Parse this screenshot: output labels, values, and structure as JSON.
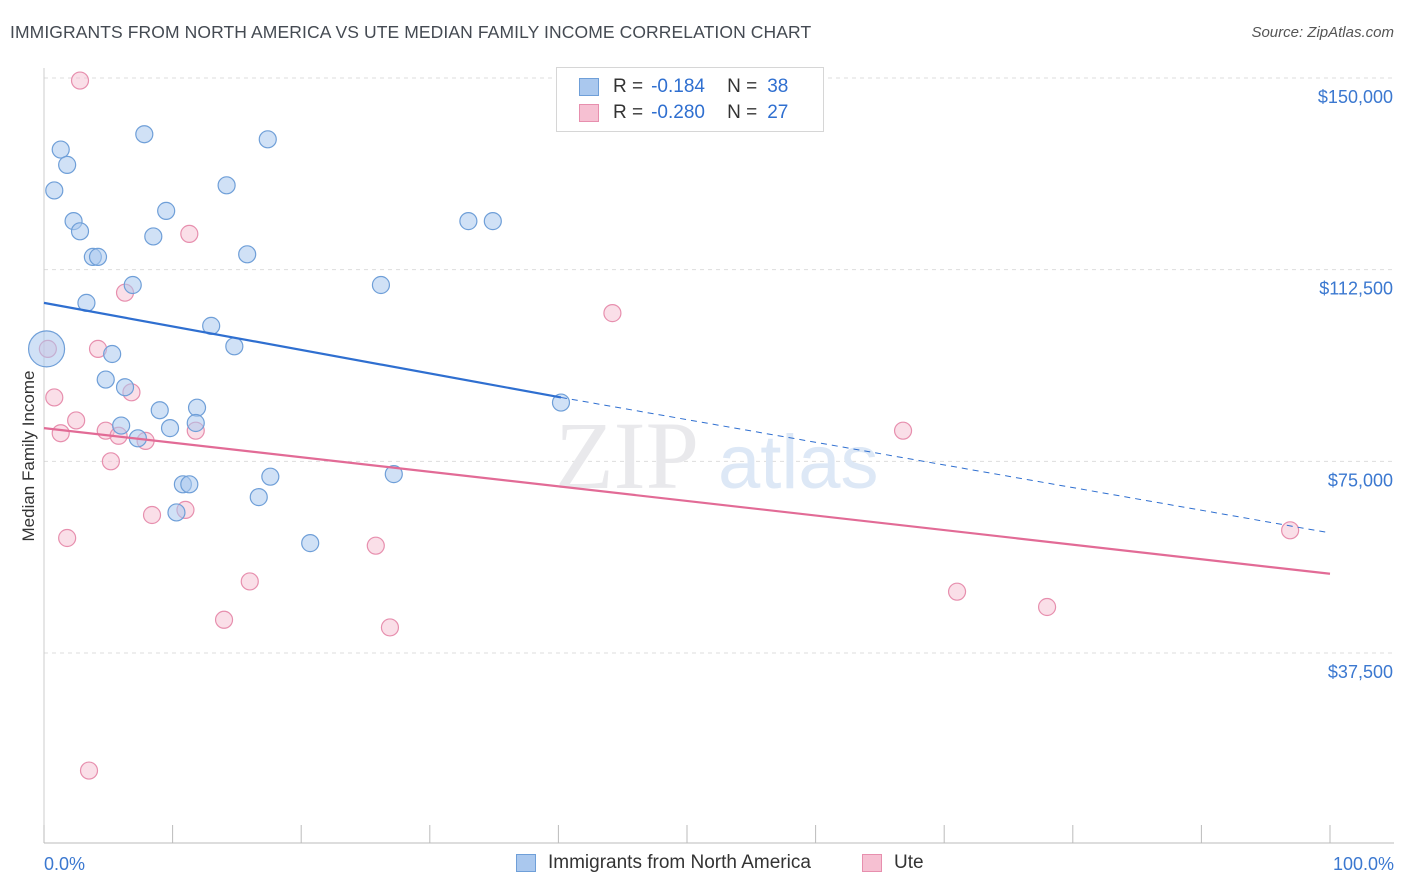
{
  "title": "IMMIGRANTS FROM NORTH AMERICA VS UTE MEDIAN FAMILY INCOME CORRELATION CHART",
  "source": "Source: ZipAtlas.com",
  "watermark": {
    "zip": "ZIP",
    "atlas": "atlas"
  },
  "colors": {
    "blue_fill": "#aac8ee",
    "blue_stroke": "#6f9fd8",
    "blue_line": "#2f6fd0",
    "pink_fill": "#f6c0d2",
    "pink_stroke": "#e78fae",
    "pink_line": "#e26b96",
    "axis_label": "#3b78d0",
    "grid": "#dddddd"
  },
  "legend": {
    "rows": [
      {
        "r_label": "R =",
        "r_value": "-0.184",
        "n_label": "N =",
        "n_value": "38",
        "color": "blue"
      },
      {
        "r_label": "R =",
        "r_value": "-0.280",
        "n_label": "N =",
        "n_value": "27",
        "color": "pink"
      }
    ]
  },
  "bottom_legend": {
    "blue": "Immigrants from North America",
    "pink": "Ute"
  },
  "chart_data": {
    "type": "scatter",
    "title": "IMMIGRANTS FROM NORTH AMERICA VS UTE MEDIAN FAMILY INCOME CORRELATION CHART",
    "xlabel": "",
    "ylabel": "Median Family Income",
    "xlim": [
      0,
      100
    ],
    "ylim": [
      0,
      150000
    ],
    "x_tick_labels": [
      "0.0%",
      "100.0%"
    ],
    "y_ticks": [
      {
        "value": 37500,
        "label": "$37,500"
      },
      {
        "value": 75000,
        "label": "$75,000"
      },
      {
        "value": 112500,
        "label": "$112,500"
      },
      {
        "value": 150000,
        "label": "$150,000"
      }
    ],
    "grid": true,
    "series": [
      {
        "name": "Immigrants from North America",
        "color": "blue",
        "points": [
          [
            0.2,
            97000,
            3
          ],
          [
            1.3,
            136000,
            1
          ],
          [
            1.8,
            133000,
            1
          ],
          [
            0.8,
            128000,
            1
          ],
          [
            2.3,
            122000,
            1
          ],
          [
            2.8,
            120000,
            1
          ],
          [
            3.8,
            115000,
            1
          ],
          [
            4.2,
            115000,
            1
          ],
          [
            3.3,
            106000,
            1
          ],
          [
            7.8,
            139000,
            1
          ],
          [
            17.4,
            138000,
            1
          ],
          [
            14.2,
            129000,
            1
          ],
          [
            9.5,
            124000,
            1
          ],
          [
            8.5,
            119000,
            1
          ],
          [
            15.8,
            115500,
            1
          ],
          [
            6.9,
            109500,
            1
          ],
          [
            26.2,
            109500,
            1
          ],
          [
            33.0,
            122000,
            1
          ],
          [
            34.9,
            122000,
            1
          ],
          [
            13.0,
            101500,
            1
          ],
          [
            14.8,
            97500,
            1
          ],
          [
            5.3,
            96000,
            1
          ],
          [
            4.8,
            91000,
            1
          ],
          [
            6.3,
            89500,
            1
          ],
          [
            11.9,
            85500,
            1
          ],
          [
            9.0,
            85000,
            1
          ],
          [
            6.0,
            82000,
            1
          ],
          [
            7.3,
            79500,
            1
          ],
          [
            9.8,
            81500,
            1
          ],
          [
            11.8,
            82500,
            1
          ],
          [
            40.2,
            86500,
            1
          ],
          [
            17.6,
            72000,
            1
          ],
          [
            27.2,
            72500,
            1
          ],
          [
            10.8,
            70500,
            1
          ],
          [
            11.3,
            70500,
            1
          ],
          [
            16.7,
            68000,
            1
          ],
          [
            10.3,
            65000,
            1
          ],
          [
            20.7,
            59000,
            1
          ]
        ]
      },
      {
        "name": "Ute",
        "color": "pink",
        "points": [
          [
            2.8,
            149500,
            1
          ],
          [
            11.3,
            119500,
            1
          ],
          [
            6.3,
            108000,
            1
          ],
          [
            44.2,
            104000,
            1
          ],
          [
            0.3,
            97000,
            1
          ],
          [
            4.2,
            97000,
            1
          ],
          [
            0.8,
            87500,
            1
          ],
          [
            6.8,
            88500,
            1
          ],
          [
            2.5,
            83000,
            1
          ],
          [
            1.3,
            80500,
            1
          ],
          [
            4.8,
            81000,
            1
          ],
          [
            5.8,
            80000,
            1
          ],
          [
            7.9,
            79000,
            1
          ],
          [
            11.8,
            81000,
            1
          ],
          [
            5.2,
            75000,
            1
          ],
          [
            8.4,
            64500,
            1
          ],
          [
            11.0,
            65500,
            1
          ],
          [
            1.8,
            60000,
            1
          ],
          [
            25.8,
            58500,
            1
          ],
          [
            16.0,
            51500,
            1
          ],
          [
            14.0,
            44000,
            1
          ],
          [
            26.9,
            42500,
            1
          ],
          [
            66.8,
            81000,
            1
          ],
          [
            71.0,
            49500,
            1
          ],
          [
            78.0,
            46500,
            1
          ],
          [
            96.9,
            61500,
            1
          ],
          [
            3.5,
            14500,
            1
          ]
        ]
      }
    ],
    "trend_lines": [
      {
        "series": "Immigrants from North America",
        "solid": [
          [
            0,
            106000
          ],
          [
            40.2,
            87500
          ]
        ],
        "dashed": [
          [
            40.2,
            87500
          ],
          [
            100,
            61000
          ]
        ]
      },
      {
        "series": "Ute",
        "solid": [
          [
            0,
            81500
          ],
          [
            100,
            53000
          ]
        ]
      }
    ]
  }
}
